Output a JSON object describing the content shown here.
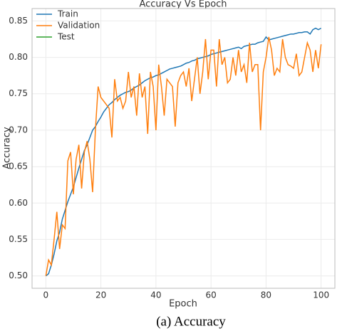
{
  "chart_data": {
    "type": "line",
    "title": "Accuracy Vs Epoch",
    "xlabel": "Epoch",
    "ylabel": "Accuracy",
    "caption": "(a) Accuracy",
    "xlim": [
      -5,
      105
    ],
    "ylim": [
      0.483,
      0.867
    ],
    "xticks": [
      0,
      20,
      40,
      60,
      80,
      100
    ],
    "yticks": [
      {
        "value": 0.5,
        "label": "0.50"
      },
      0.55,
      {
        "value": 0.6,
        "label": "0.60"
      },
      0.65,
      {
        "value": 0.7,
        "label": "0.70"
      },
      0.75,
      {
        "value": 0.8,
        "label": "0.80"
      },
      0.85
    ],
    "grid": true,
    "legend": "upper left",
    "x": [
      0,
      1,
      2,
      3,
      4,
      5,
      6,
      7,
      8,
      9,
      10,
      11,
      12,
      13,
      14,
      15,
      16,
      17,
      18,
      19,
      20,
      21,
      22,
      23,
      24,
      25,
      26,
      27,
      28,
      29,
      30,
      31,
      32,
      33,
      34,
      35,
      36,
      37,
      38,
      39,
      40,
      41,
      42,
      43,
      44,
      45,
      46,
      47,
      48,
      49,
      50,
      51,
      52,
      53,
      54,
      55,
      56,
      57,
      58,
      59,
      60,
      61,
      62,
      63,
      64,
      65,
      66,
      67,
      68,
      69,
      70,
      71,
      72,
      73,
      74,
      75,
      76,
      77,
      78,
      79,
      80,
      81,
      82,
      83,
      84,
      85,
      86,
      87,
      88,
      89,
      90,
      91,
      92,
      93,
      94,
      95,
      96,
      97,
      98,
      99,
      100
    ],
    "series": [
      {
        "name": "Train",
        "color": "#1f77b4",
        "values": [
          0.5,
          0.503,
          0.515,
          0.53,
          0.548,
          0.56,
          0.578,
          0.59,
          0.602,
          0.612,
          0.622,
          0.635,
          0.648,
          0.66,
          0.672,
          0.68,
          0.69,
          0.7,
          0.705,
          0.712,
          0.718,
          0.725,
          0.73,
          0.735,
          0.738,
          0.742,
          0.745,
          0.748,
          0.75,
          0.752,
          0.753,
          0.755,
          0.758,
          0.76,
          0.762,
          0.765,
          0.768,
          0.77,
          0.772,
          0.773,
          0.775,
          0.776,
          0.778,
          0.78,
          0.782,
          0.784,
          0.785,
          0.786,
          0.787,
          0.788,
          0.79,
          0.792,
          0.793,
          0.795,
          0.796,
          0.798,
          0.799,
          0.8,
          0.801,
          0.802,
          0.804,
          0.805,
          0.806,
          0.807,
          0.808,
          0.809,
          0.81,
          0.811,
          0.812,
          0.813,
          0.814,
          0.812,
          0.815,
          0.816,
          0.817,
          0.818,
          0.818,
          0.82,
          0.821,
          0.822,
          0.828,
          0.824,
          0.825,
          0.826,
          0.827,
          0.828,
          0.829,
          0.83,
          0.831,
          0.832,
          0.832,
          0.833,
          0.834,
          0.834,
          0.835,
          0.835,
          0.832,
          0.838,
          0.84,
          0.838,
          0.84
        ]
      },
      {
        "name": "Validation",
        "color": "#ff7f0e",
        "values": [
          0.5,
          0.522,
          0.515,
          0.55,
          0.588,
          0.537,
          0.57,
          0.565,
          0.658,
          0.67,
          0.612,
          0.66,
          0.68,
          0.62,
          0.67,
          0.685,
          0.66,
          0.615,
          0.7,
          0.76,
          0.745,
          0.74,
          0.735,
          0.73,
          0.69,
          0.77,
          0.74,
          0.745,
          0.73,
          0.74,
          0.78,
          0.745,
          0.76,
          0.72,
          0.778,
          0.745,
          0.76,
          0.695,
          0.78,
          0.76,
          0.7,
          0.79,
          0.76,
          0.72,
          0.77,
          0.765,
          0.76,
          0.705,
          0.765,
          0.775,
          0.78,
          0.76,
          0.785,
          0.74,
          0.77,
          0.8,
          0.75,
          0.78,
          0.825,
          0.77,
          0.81,
          0.81,
          0.76,
          0.825,
          0.79,
          0.8,
          0.765,
          0.77,
          0.8,
          0.775,
          0.81,
          0.78,
          0.79,
          0.765,
          0.82,
          0.78,
          0.79,
          0.79,
          0.7,
          0.78,
          0.8,
          0.828,
          0.81,
          0.775,
          0.785,
          0.78,
          0.825,
          0.8,
          0.79,
          0.788,
          0.785,
          0.805,
          0.775,
          0.78,
          0.8,
          0.82,
          0.81,
          0.78,
          0.81,
          0.785,
          0.818
        ]
      },
      {
        "name": "Test",
        "color": "#2ca02c",
        "values": [
          null,
          null,
          null,
          null,
          null,
          null,
          null,
          null,
          null,
          null,
          null,
          null,
          null,
          null,
          null,
          null,
          null,
          null,
          null,
          null,
          null,
          null,
          null,
          null,
          null,
          null,
          null,
          null,
          null,
          null,
          null,
          null,
          null,
          null,
          null,
          null,
          null,
          null,
          null,
          null,
          null,
          null,
          null,
          null,
          null,
          null,
          null,
          null,
          null,
          null,
          null,
          null,
          null,
          null,
          null,
          null,
          null,
          null,
          null,
          null,
          null,
          null,
          null,
          null,
          null,
          null,
          null,
          null,
          null,
          null,
          null,
          null,
          null,
          null,
          null,
          null,
          null,
          null,
          null,
          null,
          null,
          null,
          null,
          null,
          null,
          null,
          null,
          null,
          null,
          null,
          null,
          null,
          null,
          null,
          null,
          null,
          null,
          null,
          null,
          null,
          null
        ]
      }
    ]
  }
}
